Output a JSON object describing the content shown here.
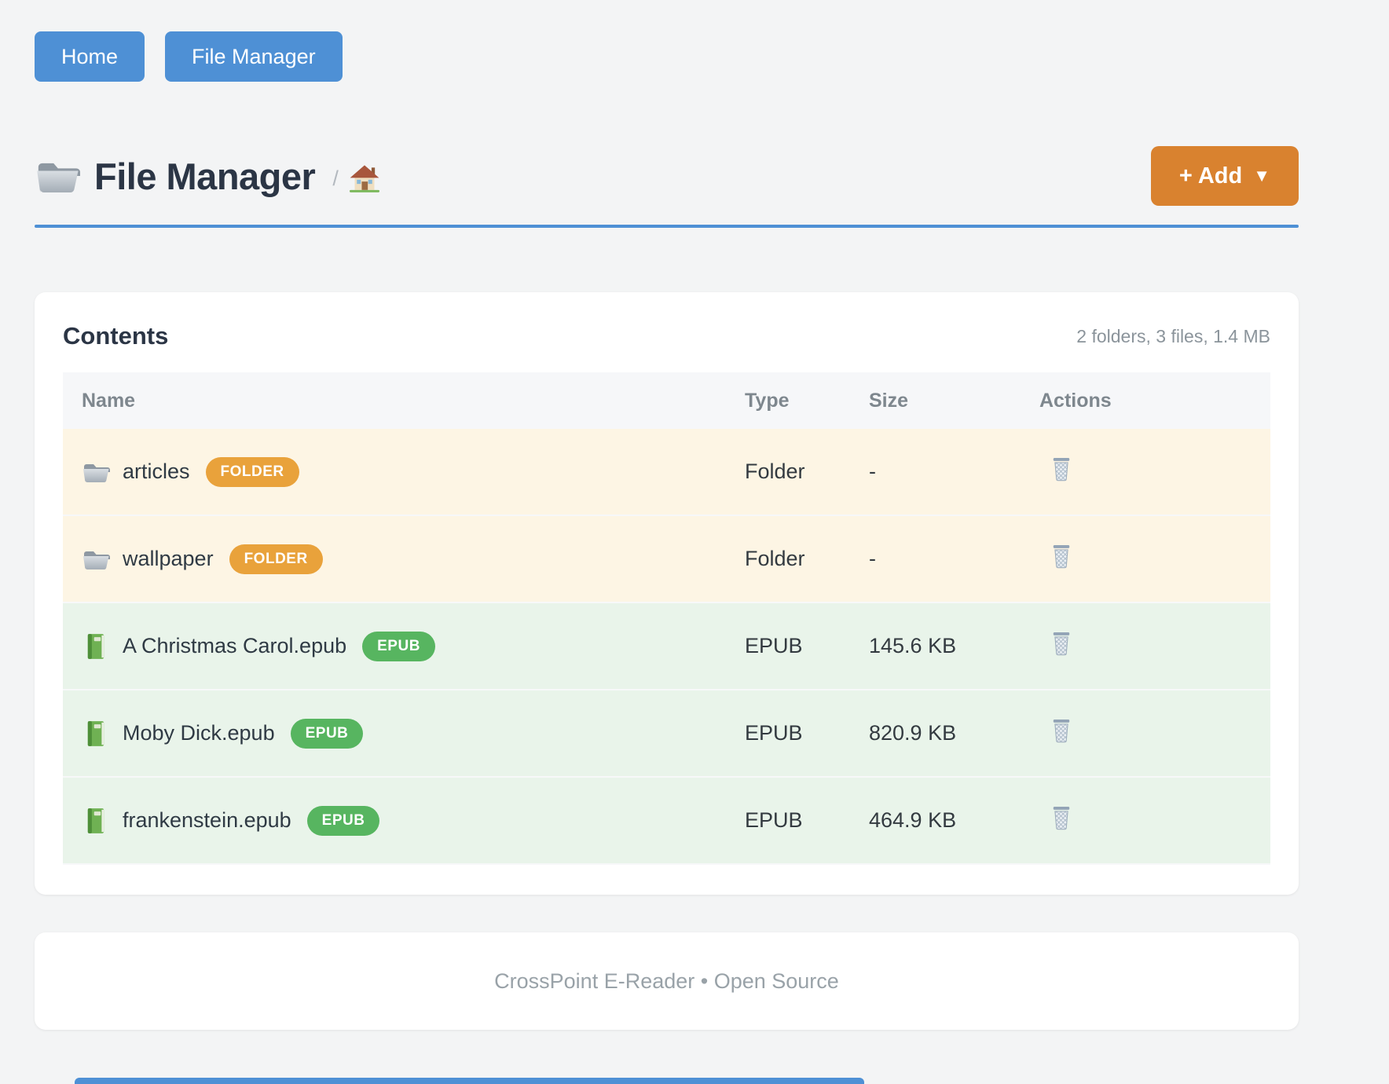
{
  "nav": {
    "home": "Home",
    "file_manager": "File Manager"
  },
  "header": {
    "title": "File Manager",
    "breadcrumb_separator": "/",
    "add_label": "+ Add",
    "add_caret": "▼"
  },
  "contents": {
    "heading": "Contents",
    "summary": "2 folders, 3 files, 1.4 MB",
    "columns": [
      "Name",
      "Type",
      "Size",
      "Actions"
    ],
    "rows": [
      {
        "name": "articles",
        "badge": "FOLDER",
        "type": "Folder",
        "size": "-",
        "kind": "folder"
      },
      {
        "name": "wallpaper",
        "badge": "FOLDER",
        "type": "Folder",
        "size": "-",
        "kind": "folder"
      },
      {
        "name": "A Christmas Carol.epub",
        "badge": "EPUB",
        "type": "EPUB",
        "size": "145.6 KB",
        "kind": "epub"
      },
      {
        "name": "Moby Dick.epub",
        "badge": "EPUB",
        "type": "EPUB",
        "size": "820.9 KB",
        "kind": "epub"
      },
      {
        "name": "frankenstein.epub",
        "badge": "EPUB",
        "type": "EPUB",
        "size": "464.9 KB",
        "kind": "epub"
      }
    ]
  },
  "footer": {
    "text": "CrossPoint E-Reader • Open Source"
  },
  "icons": {
    "title": "folder-icon",
    "breadcrumb": "house-icon",
    "folder_row": "folder-icon",
    "epub_row": "green-book-icon",
    "action": "trash-icon",
    "add_menu": "caret-down-icon"
  },
  "colors": {
    "primary_blue": "#4e90d5",
    "add_orange": "#d9822f",
    "folder_badge": "#e9a23b",
    "epub_badge": "#57b560",
    "folder_row_bg": "#fdf5e4",
    "epub_row_bg": "#e9f4ea"
  }
}
